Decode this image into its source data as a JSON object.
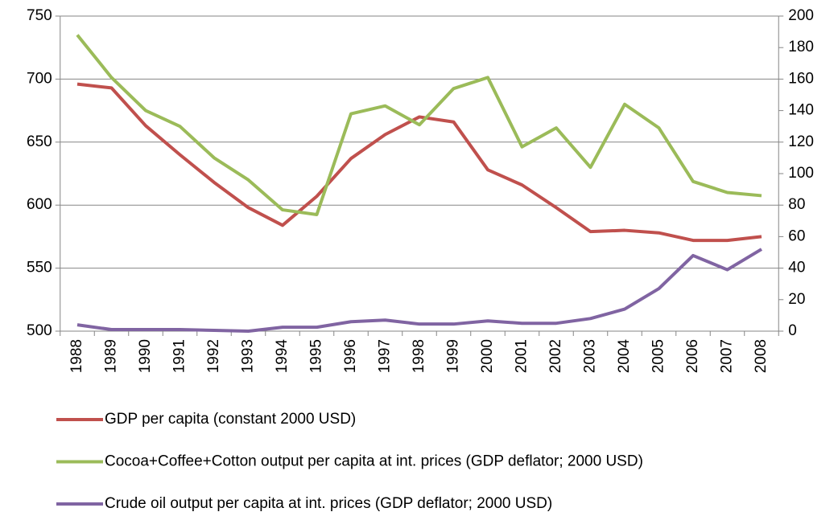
{
  "chart_data": {
    "type": "line",
    "categories": [
      "1988",
      "1989",
      "1990",
      "1991",
      "1992",
      "1993",
      "1994",
      "1995",
      "1996",
      "1997",
      "1998",
      "1999",
      "2000",
      "2001",
      "2002",
      "2003",
      "2004",
      "2005",
      "2006",
      "2007",
      "2008"
    ],
    "series": [
      {
        "name": "GDP per capita (constant 2000 USD)",
        "color": "#c0504d",
        "axis": "y",
        "values": [
          696,
          693,
          663,
          640,
          618,
          598,
          584,
          607,
          637,
          656,
          670,
          666,
          628,
          616,
          598,
          579,
          580,
          578,
          572,
          572,
          575
        ]
      },
      {
        "name": "Cocoa+Coffee+Cotton output per capita at int. prices (GDP deflator; 2000 USD)",
        "color": "#9bbb59",
        "axis": "y2",
        "values": [
          188,
          161,
          140,
          130,
          110,
          96,
          77,
          74,
          138,
          143,
          131,
          154,
          161,
          117,
          129,
          104,
          144,
          129,
          95,
          88,
          86
        ]
      },
      {
        "name": "Crude oil output per capita at int. prices (GDP deflator; 2000 USD)",
        "color": "#8064a2",
        "axis": "y2",
        "values": [
          4,
          1,
          1,
          1,
          0.5,
          0,
          2.5,
          2.5,
          6,
          7,
          4.5,
          4.5,
          6.5,
          5,
          5,
          8,
          14,
          27,
          48,
          39,
          52
        ]
      }
    ],
    "ylim": [
      500,
      750
    ],
    "yticks": [
      500,
      550,
      600,
      650,
      700,
      750
    ],
    "y2lim": [
      0,
      200
    ],
    "y2ticks": [
      0,
      20,
      40,
      60,
      80,
      100,
      120,
      140,
      160,
      180,
      200
    ],
    "grid": true,
    "legend": "bottom"
  }
}
